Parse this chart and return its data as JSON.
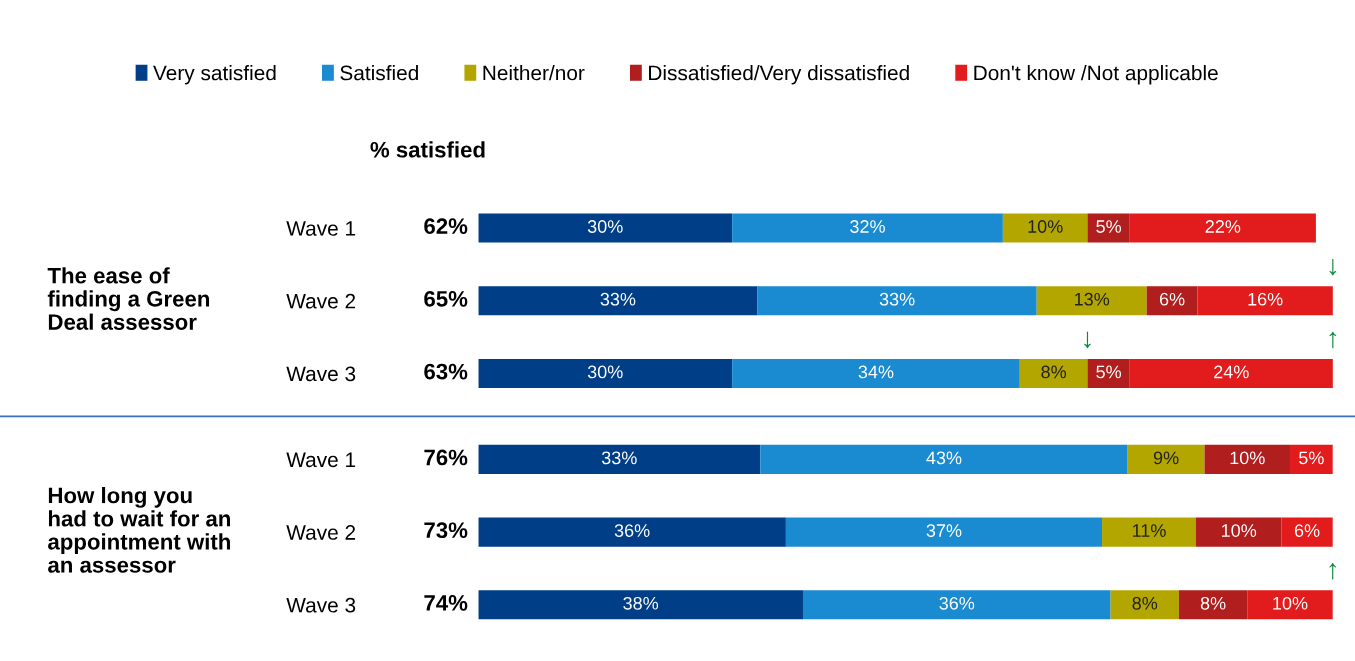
{
  "chart_data": [
    {
      "type": "bar",
      "orientation": "horizontal",
      "stacked": true,
      "legend": "top",
      "title": "The ease of\nfinding a Green\nDeal assessor",
      "categories": [
        "Wave 1",
        "Wave 2",
        "Wave 3"
      ],
      "series": [
        {
          "name": "Very satisfied",
          "color": "#003f87",
          "values": [
            30,
            33,
            30
          ],
          "value_labels": [
            "30%",
            "33%",
            "30%"
          ]
        },
        {
          "name": "Satisfied",
          "color": "#1a8bd0",
          "values": [
            32,
            33,
            34
          ],
          "value_labels": [
            "32%",
            "33%",
            "34%"
          ]
        },
        {
          "name": "Neither/nor",
          "color": "#b3a600",
          "values": [
            10,
            13,
            8
          ],
          "value_labels": [
            "10%",
            "13%",
            "8%"
          ]
        },
        {
          "name": "Dissatisfied/Very dissatisfied",
          "color": "#b01e1e",
          "values": [
            5,
            6,
            5
          ],
          "value_labels": [
            "5%",
            "6%",
            "5%"
          ]
        },
        {
          "name": "Don't know /Not applicable",
          "color": "#e21c1c",
          "values": [
            22,
            16,
            24
          ],
          "value_labels": [
            "22%",
            "16%",
            "24%"
          ]
        }
      ],
      "annotations": [
        "% satisfied",
        "62%",
        "65%",
        "63%",
        {
          "text": "↓",
          "x": 101,
          "y": "Wave 2"
        },
        {
          "text": "↓",
          "x": 72,
          "y": "Wave 3"
        },
        {
          "text": "↑",
          "x": 101,
          "y": "Wave 3"
        }
      ]
    },
    {
      "type": "bar",
      "orientation": "horizontal",
      "stacked": true,
      "title": "How long you\nhad to wait for an\nappointment with\nan assessor",
      "categories": [
        "Wave 1",
        "Wave 2",
        "Wave 3"
      ],
      "series": [
        {
          "name": "Very satisfied",
          "color": "#003f87",
          "values": [
            33,
            36,
            38
          ],
          "value_labels": [
            "33%",
            "36%",
            "38%"
          ]
        },
        {
          "name": "Satisfied",
          "color": "#1a8bd0",
          "values": [
            43,
            37,
            36
          ],
          "value_labels": [
            "43%",
            "37%",
            "36%"
          ]
        },
        {
          "name": "Neither/nor",
          "color": "#b3a600",
          "values": [
            9,
            11,
            8
          ],
          "value_labels": [
            "9%",
            "11%",
            "8%"
          ]
        },
        {
          "name": "Dissatisfied/Very dissatisfied",
          "color": "#b01e1e",
          "values": [
            10,
            10,
            8
          ],
          "value_labels": [
            "10%",
            "10%",
            "8%"
          ]
        },
        {
          "name": "Don't know /Not applicable",
          "color": "#e21c1c",
          "values": [
            5,
            6,
            10
          ],
          "value_labels": [
            "5%",
            "6%",
            "10%"
          ]
        }
      ],
      "annotations": [
        "76%",
        "73%",
        "74%",
        {
          "text": "↑",
          "x": 100,
          "y": "Wave 3"
        }
      ]
    }
  ]
}
